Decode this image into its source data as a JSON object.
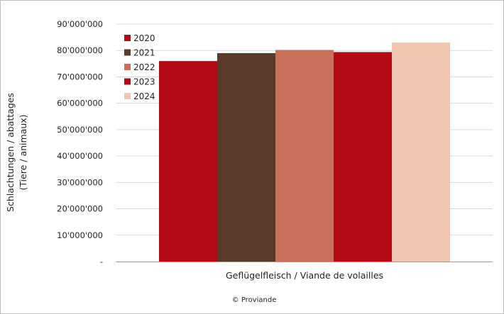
{
  "chart_data": {
    "type": "bar",
    "categories": [
      "Geflügelfleisch / Viande de volailles"
    ],
    "series": [
      {
        "name": "2020",
        "color": "#b50a14",
        "values": [
          76000000
        ]
      },
      {
        "name": "2021",
        "color": "#5a3a2a",
        "values": [
          79000000
        ]
      },
      {
        "name": "2022",
        "color": "#c8705a",
        "values": [
          80200000
        ]
      },
      {
        "name": "2023",
        "color": "#b50a14",
        "values": [
          79400000
        ]
      },
      {
        "name": "2024",
        "color": "#f0c6b1",
        "values": [
          83000000
        ]
      }
    ],
    "ylim": [
      0,
      90000000
    ],
    "yticks": [
      0,
      10000000,
      20000000,
      30000000,
      40000000,
      50000000,
      60000000,
      70000000,
      80000000,
      90000000
    ],
    "ytick_labels": [
      "-",
      "10'000'000",
      "20'000'000",
      "30'000'000",
      "40'000'000",
      "50'000'000",
      "60'000'000",
      "70'000'000",
      "80'000'000",
      "90'000'000"
    ],
    "ylabel_line1": "Schlachtungen  / abattages",
    "ylabel_line2": "(Tiere / animaux)",
    "xlabel": "Geflügelfleisch / Viande de volailles",
    "grid": true,
    "legend_position": "top-left"
  },
  "credit": "© Proviande"
}
